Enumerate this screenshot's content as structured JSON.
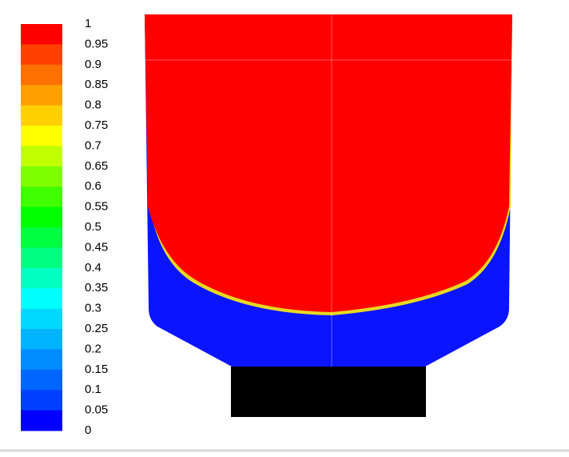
{
  "colorbar": {
    "labels": [
      "1",
      "0.95",
      "0.9",
      "0.85",
      "0.8",
      "0.75",
      "0.7",
      "0.65",
      "0.6",
      "0.55",
      "0.5",
      "0.45",
      "0.4",
      "0.35",
      "0.3",
      "0.25",
      "0.2",
      "0.15",
      "0.1",
      "0.05",
      "0"
    ],
    "colors": [
      "#ff0000",
      "#ff4000",
      "#ff7000",
      "#ffa000",
      "#ffd000",
      "#ffff00",
      "#c0ff00",
      "#80ff00",
      "#40ff00",
      "#00ff00",
      "#00ff40",
      "#00ff80",
      "#00ffc0",
      "#00ffff",
      "#00d9ff",
      "#00b3ff",
      "#008cff",
      "#0066ff",
      "#0040ff",
      "#0000ff"
    ]
  }
}
